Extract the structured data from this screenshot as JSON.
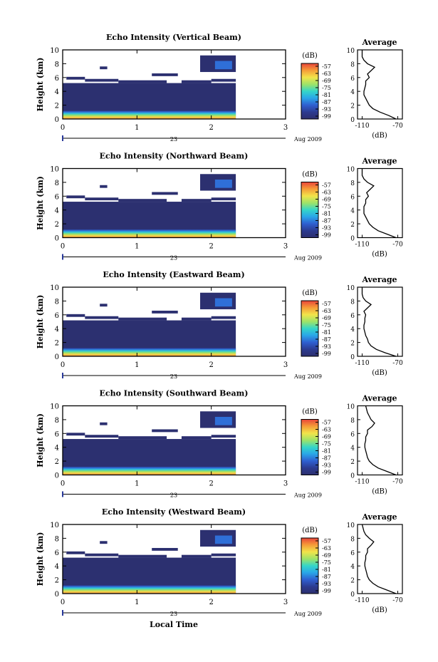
{
  "figure": {
    "xlabel": "Local Time",
    "colorbar_unit": "(dB)",
    "colorbar_ticks": [
      "-57",
      "-63",
      "-69",
      "-75",
      "-81",
      "-87",
      "-93",
      "-99"
    ],
    "average_title": "Average",
    "average_xlabel": "(dB)",
    "average_ticks": [
      "-110",
      "-70"
    ],
    "ylabel": "Height (km)",
    "date_day": "23",
    "date_month": "Aug 2009"
  },
  "chart_data": [
    {
      "type": "heatmap",
      "title": "Echo Intensity (Vertical Beam)",
      "xlabel": "",
      "ylabel": "Height (km)",
      "x_ticks": [
        "0",
        "1",
        "2",
        "3"
      ],
      "y_ticks": [
        "0",
        "2",
        "4",
        "6",
        "8",
        "10"
      ],
      "xlim": [
        0,
        3
      ],
      "ylim": [
        0,
        10
      ],
      "colorbar_range_db": [
        -99,
        -57
      ],
      "average_profile": {
        "x_db": [
          -72,
          -80,
          -90,
          -98,
          -102,
          -104,
          -106,
          -108,
          -108,
          -107,
          -106,
          -106,
          -102,
          -104,
          -100,
          -96,
          -104,
          -108,
          -110,
          -110
        ],
        "y_km": [
          0,
          0.5,
          1,
          1.5,
          2,
          2.5,
          3,
          3.5,
          4,
          4.5,
          5,
          5.5,
          6,
          6.5,
          7,
          7.5,
          8,
          8.5,
          9,
          10
        ]
      }
    },
    {
      "type": "heatmap",
      "title": "Echo Intensity (Northward Beam)",
      "xlabel": "",
      "ylabel": "Height (km)",
      "x_ticks": [
        "0",
        "1",
        "2",
        "3"
      ],
      "y_ticks": [
        "0",
        "2",
        "4",
        "6",
        "8",
        "10"
      ],
      "xlim": [
        0,
        3
      ],
      "ylim": [
        0,
        10
      ],
      "colorbar_range_db": [
        -99,
        -57
      ],
      "average_profile": {
        "x_db": [
          -72,
          -82,
          -92,
          -98,
          -102,
          -104,
          -106,
          -108,
          -108,
          -108,
          -106,
          -106,
          -103,
          -105,
          -101,
          -97,
          -104,
          -108,
          -110,
          -110
        ],
        "y_km": [
          0,
          0.5,
          1,
          1.5,
          2,
          2.5,
          3,
          3.5,
          4,
          4.5,
          5,
          5.5,
          6,
          6.5,
          7,
          7.5,
          8,
          8.5,
          9,
          10
        ]
      }
    },
    {
      "type": "heatmap",
      "title": "Echo Intensity (Eastward Beam)",
      "xlabel": "",
      "ylabel": "Height (km)",
      "x_ticks": [
        "0",
        "1",
        "2",
        "3"
      ],
      "y_ticks": [
        "0",
        "2",
        "4",
        "6",
        "8",
        "10"
      ],
      "xlim": [
        0,
        3
      ],
      "ylim": [
        0,
        10
      ],
      "colorbar_range_db": [
        -99,
        -57
      ],
      "average_profile": {
        "x_db": [
          -72,
          -84,
          -94,
          -100,
          -103,
          -104,
          -106,
          -107,
          -108,
          -108,
          -107,
          -107,
          -106,
          -108,
          -104,
          -100,
          -106,
          -109,
          -110,
          -110
        ],
        "y_km": [
          0,
          0.5,
          1,
          1.5,
          2,
          2.5,
          3,
          3.5,
          4,
          4.5,
          5,
          5.5,
          6,
          6.5,
          7,
          7.5,
          8,
          8.5,
          9,
          10
        ]
      }
    },
    {
      "type": "heatmap",
      "title": "Echo Intensity (Southward Beam)",
      "xlabel": "",
      "ylabel": "Height (km)",
      "x_ticks": [
        "0",
        "1",
        "2",
        "3"
      ],
      "y_ticks": [
        "0",
        "2",
        "4",
        "6",
        "8",
        "10"
      ],
      "xlim": [
        0,
        3
      ],
      "ylim": [
        0,
        10
      ],
      "colorbar_range_db": [
        -99,
        -57
      ],
      "average_profile": {
        "x_db": [
          -72,
          -82,
          -92,
          -98,
          -102,
          -104,
          -105,
          -106,
          -107,
          -107,
          -106,
          -106,
          -104,
          -104,
          -99,
          -96,
          -100,
          -102,
          -104,
          -106
        ],
        "y_km": [
          0,
          0.5,
          1,
          1.5,
          2,
          2.5,
          3,
          3.5,
          4,
          4.5,
          5,
          5.5,
          6,
          6.5,
          7,
          7.5,
          8,
          8.5,
          9,
          10
        ]
      }
    },
    {
      "type": "heatmap",
      "title": "Echo Intensity (Westward Beam)",
      "xlabel": "Local Time",
      "ylabel": "Height (km)",
      "x_ticks": [
        "0",
        "1",
        "2",
        "3"
      ],
      "y_ticks": [
        "0",
        "2",
        "4",
        "6",
        "8",
        "10"
      ],
      "xlim": [
        0,
        3
      ],
      "ylim": [
        0,
        10
      ],
      "colorbar_range_db": [
        -99,
        -57
      ],
      "average_profile": {
        "x_db": [
          -72,
          -82,
          -92,
          -98,
          -102,
          -104,
          -105,
          -106,
          -107,
          -107,
          -106,
          -106,
          -104,
          -104,
          -100,
          -97,
          -102,
          -106,
          -108,
          -110
        ],
        "y_km": [
          0,
          0.5,
          1,
          1.5,
          2,
          2.5,
          3,
          3.5,
          4,
          4.5,
          5,
          5.5,
          6,
          6.5,
          7,
          7.5,
          8,
          8.5,
          9,
          10
        ]
      }
    }
  ]
}
